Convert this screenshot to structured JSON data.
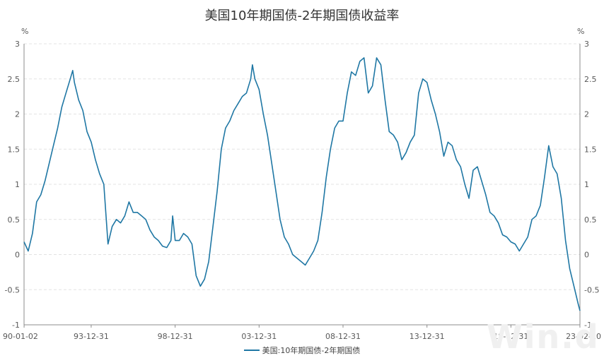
{
  "chart_data": {
    "type": "line",
    "title": "美国10年期国债-2年期国债收益率",
    "y_unit_left": "%",
    "y_unit_right": "%",
    "ylim": [
      -1,
      3
    ],
    "yticks": [
      "-1",
      "-0.5",
      "0",
      "0.5",
      "1",
      "1.5",
      "2",
      "2.5",
      "3"
    ],
    "xlim": [
      1990.0,
      2023.11
    ],
    "xtick_labels": [
      "90-01-02",
      "93-12-31",
      "98-12-31",
      "03-12-31",
      "08-12-31",
      "13-12-31",
      "18-12-31",
      "23-02-10"
    ],
    "grid": true,
    "legend_position": "bottom",
    "series": [
      {
        "name": "美国:10年期国债-2年期国债",
        "color": "#1f77a4",
        "points": [
          [
            1990.0,
            0.18
          ],
          [
            1990.25,
            0.05
          ],
          [
            1990.5,
            0.3
          ],
          [
            1990.75,
            0.75
          ],
          [
            1991.0,
            0.85
          ],
          [
            1991.25,
            1.05
          ],
          [
            1991.5,
            1.3
          ],
          [
            1991.75,
            1.55
          ],
          [
            1992.0,
            1.8
          ],
          [
            1992.25,
            2.1
          ],
          [
            1992.5,
            2.3
          ],
          [
            1992.75,
            2.5
          ],
          [
            1992.9,
            2.62
          ],
          [
            1993.0,
            2.45
          ],
          [
            1993.25,
            2.2
          ],
          [
            1993.5,
            2.05
          ],
          [
            1993.75,
            1.75
          ],
          [
            1994.0,
            1.6
          ],
          [
            1994.25,
            1.35
          ],
          [
            1994.5,
            1.15
          ],
          [
            1994.75,
            1.0
          ],
          [
            1995.0,
            0.15
          ],
          [
            1995.25,
            0.4
          ],
          [
            1995.5,
            0.5
          ],
          [
            1995.75,
            0.45
          ],
          [
            1996.0,
            0.55
          ],
          [
            1996.25,
            0.75
          ],
          [
            1996.5,
            0.6
          ],
          [
            1996.75,
            0.6
          ],
          [
            1997.0,
            0.55
          ],
          [
            1997.25,
            0.5
          ],
          [
            1997.5,
            0.35
          ],
          [
            1997.75,
            0.25
          ],
          [
            1998.0,
            0.2
          ],
          [
            1998.25,
            0.12
          ],
          [
            1998.5,
            0.1
          ],
          [
            1998.75,
            0.2
          ],
          [
            1998.85,
            0.55
          ],
          [
            1999.0,
            0.2
          ],
          [
            1999.25,
            0.2
          ],
          [
            1999.5,
            0.3
          ],
          [
            1999.75,
            0.25
          ],
          [
            2000.0,
            0.15
          ],
          [
            2000.25,
            -0.3
          ],
          [
            2000.5,
            -0.45
          ],
          [
            2000.75,
            -0.35
          ],
          [
            2001.0,
            -0.1
          ],
          [
            2001.25,
            0.4
          ],
          [
            2001.5,
            0.9
          ],
          [
            2001.75,
            1.5
          ],
          [
            2002.0,
            1.8
          ],
          [
            2002.25,
            1.9
          ],
          [
            2002.5,
            2.05
          ],
          [
            2002.75,
            2.15
          ],
          [
            2003.0,
            2.25
          ],
          [
            2003.25,
            2.3
          ],
          [
            2003.5,
            2.5
          ],
          [
            2003.6,
            2.7
          ],
          [
            2003.75,
            2.5
          ],
          [
            2004.0,
            2.35
          ],
          [
            2004.25,
            2.0
          ],
          [
            2004.5,
            1.7
          ],
          [
            2004.75,
            1.3
          ],
          [
            2005.0,
            0.9
          ],
          [
            2005.25,
            0.5
          ],
          [
            2005.5,
            0.25
          ],
          [
            2005.75,
            0.15
          ],
          [
            2006.0,
            0.0
          ],
          [
            2006.25,
            -0.05
          ],
          [
            2006.5,
            -0.1
          ],
          [
            2006.75,
            -0.15
          ],
          [
            2007.0,
            -0.05
          ],
          [
            2007.25,
            0.05
          ],
          [
            2007.5,
            0.2
          ],
          [
            2007.75,
            0.6
          ],
          [
            2008.0,
            1.1
          ],
          [
            2008.25,
            1.5
          ],
          [
            2008.5,
            1.8
          ],
          [
            2008.75,
            1.9
          ],
          [
            2009.0,
            1.9
          ],
          [
            2009.25,
            2.3
          ],
          [
            2009.5,
            2.6
          ],
          [
            2009.75,
            2.55
          ],
          [
            2010.0,
            2.75
          ],
          [
            2010.25,
            2.8
          ],
          [
            2010.5,
            2.3
          ],
          [
            2010.75,
            2.4
          ],
          [
            2011.0,
            2.8
          ],
          [
            2011.25,
            2.7
          ],
          [
            2011.5,
            2.2
          ],
          [
            2011.75,
            1.75
          ],
          [
            2012.0,
            1.7
          ],
          [
            2012.25,
            1.6
          ],
          [
            2012.5,
            1.35
          ],
          [
            2012.75,
            1.45
          ],
          [
            2013.0,
            1.6
          ],
          [
            2013.25,
            1.7
          ],
          [
            2013.5,
            2.3
          ],
          [
            2013.75,
            2.5
          ],
          [
            2014.0,
            2.45
          ],
          [
            2014.25,
            2.2
          ],
          [
            2014.5,
            2.0
          ],
          [
            2014.75,
            1.75
          ],
          [
            2015.0,
            1.4
          ],
          [
            2015.25,
            1.6
          ],
          [
            2015.5,
            1.55
          ],
          [
            2015.75,
            1.35
          ],
          [
            2016.0,
            1.25
          ],
          [
            2016.25,
            1.0
          ],
          [
            2016.5,
            0.8
          ],
          [
            2016.75,
            1.2
          ],
          [
            2017.0,
            1.25
          ],
          [
            2017.25,
            1.05
          ],
          [
            2017.5,
            0.85
          ],
          [
            2017.75,
            0.6
          ],
          [
            2018.0,
            0.55
          ],
          [
            2018.25,
            0.45
          ],
          [
            2018.5,
            0.28
          ],
          [
            2018.75,
            0.25
          ],
          [
            2019.0,
            0.18
          ],
          [
            2019.25,
            0.15
          ],
          [
            2019.5,
            0.05
          ],
          [
            2019.75,
            0.15
          ],
          [
            2020.0,
            0.25
          ],
          [
            2020.25,
            0.5
          ],
          [
            2020.5,
            0.55
          ],
          [
            2020.75,
            0.7
          ],
          [
            2021.0,
            1.1
          ],
          [
            2021.25,
            1.55
          ],
          [
            2021.5,
            1.25
          ],
          [
            2021.75,
            1.15
          ],
          [
            2022.0,
            0.8
          ],
          [
            2022.25,
            0.2
          ],
          [
            2022.5,
            -0.2
          ],
          [
            2022.75,
            -0.45
          ],
          [
            2023.0,
            -0.7
          ],
          [
            2023.11,
            -0.8
          ]
        ]
      }
    ]
  },
  "watermark": "Win.d"
}
